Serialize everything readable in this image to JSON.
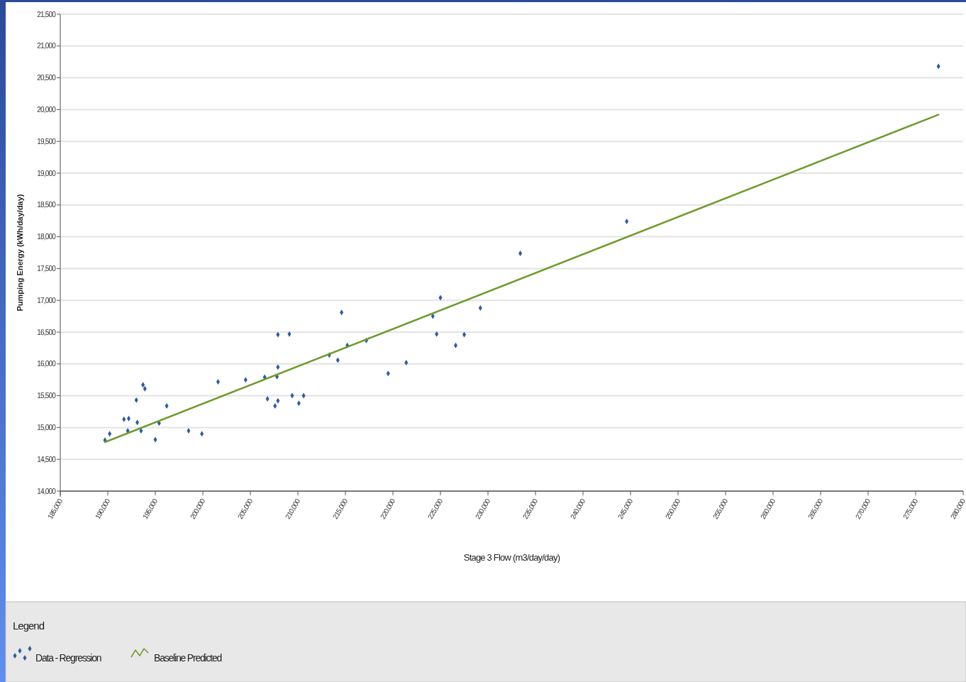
{
  "chart_data": {
    "type": "scatter",
    "xlabel": "Stage 3 Flow (m3/day/day)",
    "ylabel": "Pumping Energy (kWh/day/day)",
    "legend_title": "Legend",
    "xlim": [
      185000,
      280000
    ],
    "xticks": [
      {
        "value": 185000,
        "label": "185,000"
      },
      {
        "value": 190000,
        "label": "190,000"
      },
      {
        "value": 195000,
        "label": "195,000"
      },
      {
        "value": 200000,
        "label": "200,000"
      },
      {
        "value": 205000,
        "label": "205,000"
      },
      {
        "value": 210000,
        "label": "210,000"
      },
      {
        "value": 215000,
        "label": "215,000"
      },
      {
        "value": 220000,
        "label": "220,000"
      },
      {
        "value": 225000,
        "label": "225,000"
      },
      {
        "value": 230000,
        "label": "230,000"
      },
      {
        "value": 235000,
        "label": "235,000"
      },
      {
        "value": 240000,
        "label": "240,000"
      },
      {
        "value": 245000,
        "label": "245,000"
      },
      {
        "value": 250000,
        "label": "250,000"
      },
      {
        "value": 255000,
        "label": "255,000"
      },
      {
        "value": 260000,
        "label": "260,000"
      },
      {
        "value": 265000,
        "label": "265,000"
      },
      {
        "value": 270000,
        "label": "270,000"
      },
      {
        "value": 275000,
        "label": "275,000"
      },
      {
        "value": 280000,
        "label": "280,000"
      }
    ],
    "ylim": [
      14000,
      21500
    ],
    "yticks": [
      {
        "value": 14000,
        "label": "14,000"
      },
      {
        "value": 14500,
        "label": "14,500"
      },
      {
        "value": 15000,
        "label": "15,000"
      },
      {
        "value": 15500,
        "label": "15,500"
      },
      {
        "value": 16000,
        "label": "16,000"
      },
      {
        "value": 16500,
        "label": "16,500"
      },
      {
        "value": 17000,
        "label": "17,000"
      },
      {
        "value": 17500,
        "label": "17,500"
      },
      {
        "value": 18000,
        "label": "18,000"
      },
      {
        "value": 18500,
        "label": "18,500"
      },
      {
        "value": 19000,
        "label": "19,000"
      },
      {
        "value": 19500,
        "label": "19,500"
      },
      {
        "value": 20000,
        "label": "20,000"
      },
      {
        "value": 20500,
        "label": "20,500"
      },
      {
        "value": 21000,
        "label": "21,000"
      },
      {
        "value": 21500,
        "label": "21,500"
      }
    ],
    "grid": "y",
    "legend": "bottom",
    "series": [
      {
        "name": "Data - Regression",
        "marker": "diamond",
        "color": "#2e5c9e",
        "x": [
          189700,
          190200,
          191700,
          192200,
          192100,
          193000,
          193100,
          193500,
          193700,
          193900,
          195000,
          195400,
          196200,
          198500,
          199900,
          201600,
          204500,
          206500,
          206800,
          207600,
          207900,
          207800,
          207900,
          207900,
          209100,
          209400,
          210100,
          210600,
          213300,
          214200,
          214600,
          215200,
          217200,
          219500,
          221400,
          224200,
          224600,
          225000,
          226600,
          227500,
          229200,
          233400,
          244600,
          277400
        ],
        "values": [
          14800,
          14900,
          15130,
          15140,
          14950,
          15430,
          15080,
          14950,
          15670,
          15610,
          14810,
          15070,
          15340,
          14950,
          14900,
          15720,
          15750,
          15790,
          15450,
          15340,
          15420,
          15800,
          15950,
          16460,
          16470,
          15500,
          15380,
          15500,
          16140,
          16060,
          16810,
          16290,
          16370,
          15850,
          16020,
          16750,
          16470,
          17040,
          16290,
          16460,
          16880,
          17740,
          18240,
          20680
        ]
      },
      {
        "name": "Baseline Predicted",
        "type": "line",
        "marker": "none",
        "line_style": "solid",
        "color": "#6f9a2e",
        "x": [
          189700,
          277400
        ],
        "values": [
          14770,
          19920
        ]
      }
    ]
  }
}
